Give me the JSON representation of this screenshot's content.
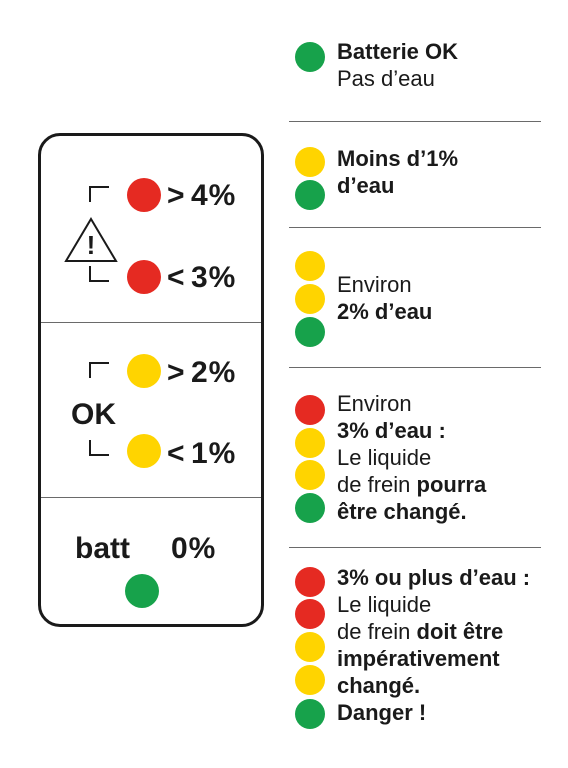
{
  "device": {
    "row1_high_pct": "4%",
    "row1_low_pct": "3%",
    "row2_high_pct": "2%",
    "row2_low_pct": "1%",
    "ok_label": "OK",
    "batt_label": "batt",
    "batt_pct": "0%",
    "warning_symbol": "!"
  },
  "legend": [
    {
      "dots": [
        "green"
      ],
      "lines": [
        [
          {
            "t": "Batterie OK",
            "b": true
          }
        ],
        [
          {
            "t": "Pas d’eau",
            "b": false
          }
        ]
      ]
    },
    {
      "dots": [
        "yellow",
        "green"
      ],
      "lines": [
        [
          {
            "t": "Moins d’1%",
            "b": true
          }
        ],
        [
          {
            "t": "d’eau",
            "b": true
          }
        ]
      ]
    },
    {
      "dots": [
        "yellow",
        "yellow",
        "green"
      ],
      "lines": [
        [
          {
            "t": "Environ",
            "b": false
          }
        ],
        [
          {
            "t": "2% d’eau",
            "b": true
          }
        ]
      ]
    },
    {
      "dots": [
        "red",
        "yellow",
        "yellow",
        "green"
      ],
      "lines": [
        [
          {
            "t": "Environ",
            "b": false
          }
        ],
        [
          {
            "t": "3% d’eau :",
            "b": true
          }
        ],
        [
          {
            "t": "Le liquide",
            "b": false
          }
        ],
        [
          {
            "t": "de frein ",
            "b": false
          },
          {
            "t": "pourra",
            "b": true
          }
        ],
        [
          {
            "t": "être changé.",
            "b": true
          }
        ]
      ]
    },
    {
      "dots": [
        "red",
        "red",
        "yellow",
        "yellow",
        "green"
      ],
      "lines": [
        [
          {
            "t": "3% ou plus d’eau :",
            "b": true
          }
        ],
        [
          {
            "t": "Le liquide",
            "b": false
          }
        ],
        [
          {
            "t": "de frein ",
            "b": false
          },
          {
            "t": "doit être",
            "b": true
          }
        ],
        [
          {
            "t": "impérativement",
            "b": true
          }
        ],
        [
          {
            "t": "changé.",
            "b": true
          }
        ],
        [
          {
            "t": "Danger !",
            "b": true
          }
        ]
      ]
    }
  ],
  "colors": {
    "red": "#e52a22",
    "yellow": "#ffd400",
    "green": "#17a24b"
  }
}
